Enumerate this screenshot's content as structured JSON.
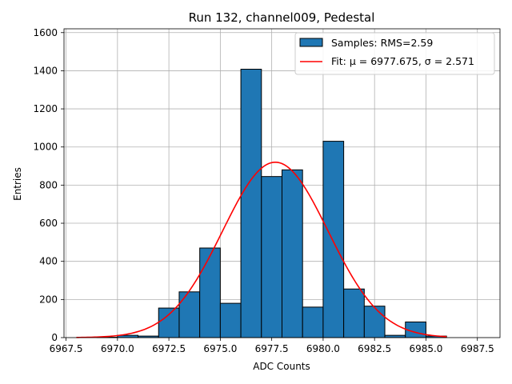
{
  "chart_data": {
    "type": "bar",
    "title": "Run 132, channel009, Pedestal",
    "xlabel": "ADC Counts",
    "ylabel": "Entries",
    "xlim": [
      6967.4,
      6988.6
    ],
    "ylim": [
      0,
      1620
    ],
    "grid": true,
    "legend_position": "top-right",
    "xticks": [
      6967.5,
      6970.0,
      6972.5,
      6975.0,
      6977.5,
      6980.0,
      6982.5,
      6985.0,
      6987.5
    ],
    "xtick_labels": [
      "6967.5",
      "6970.0",
      "6972.5",
      "6975.0",
      "6977.5",
      "6980.0",
      "6982.5",
      "6985.0",
      "6987.5"
    ],
    "yticks": [
      0,
      200,
      400,
      600,
      800,
      1000,
      1200,
      1400,
      1600
    ],
    "ytick_labels": [
      "0",
      "200",
      "400",
      "600",
      "800",
      "1000",
      "1200",
      "1400",
      "1600"
    ],
    "bin_edges": [
      6968.0,
      6969.0,
      6970.0,
      6971.0,
      6972.0,
      6973.0,
      6974.0,
      6975.0,
      6976.0,
      6977.0,
      6978.0,
      6979.0,
      6980.0,
      6981.0,
      6982.0,
      6983.0,
      6984.0,
      6985.0,
      6986.0,
      6987.0,
      6988.0
    ],
    "series": [
      {
        "name": "Samples: RMS=2.59",
        "kind": "histogram",
        "color": "#1f77b4",
        "edgecolor": "#000000",
        "values": [
          0,
          2,
          12,
          8,
          155,
          240,
          470,
          180,
          1408,
          845,
          880,
          160,
          1030,
          255,
          165,
          12,
          82,
          8,
          0,
          0
        ]
      },
      {
        "name": "Fit: μ = 6977.675, σ = 2.571",
        "kind": "gaussian_fit",
        "color": "#ff0000",
        "mu": 6977.675,
        "sigma": 2.571,
        "amplitude": 920,
        "x_range": [
          6968.0,
          6986.0
        ]
      }
    ]
  }
}
